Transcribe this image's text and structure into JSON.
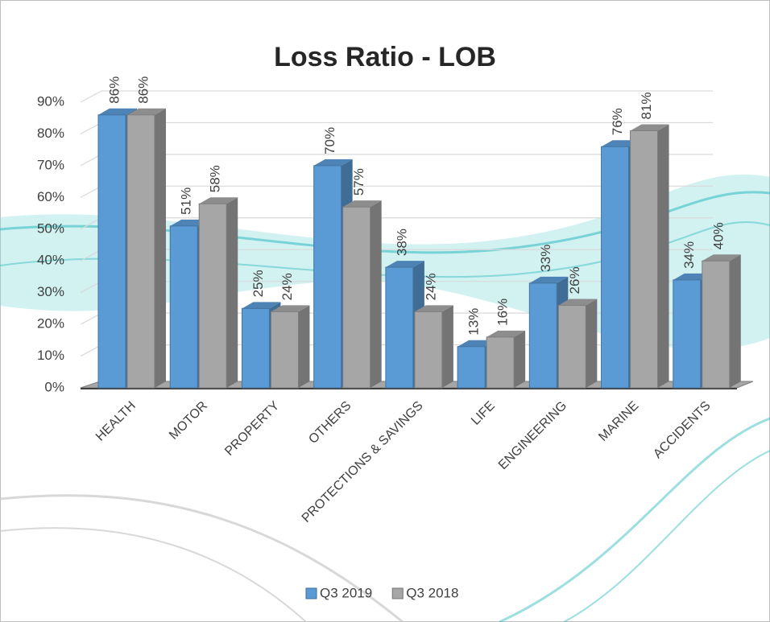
{
  "chart_data": {
    "type": "bar",
    "title": "Loss Ratio - LOB",
    "categories": [
      "HEALTH",
      "MOTOR",
      "PROPERTY",
      "OTHERS",
      "PROTECTIONS & SAVINGS",
      "LIFE",
      "ENGINEERING",
      "MARINE",
      "ACCIDENTS"
    ],
    "series": [
      {
        "name": "Q3 2019",
        "color": "#5b9bd5",
        "values": [
          86,
          51,
          25,
          70,
          38,
          13,
          33,
          76,
          34
        ],
        "value_labels": [
          "86%",
          "51%",
          "25%",
          "70%",
          "38%",
          "13%",
          "33%",
          "76%",
          "34%"
        ]
      },
      {
        "name": "Q3 2018",
        "color": "#a6a6a6",
        "values": [
          86,
          58,
          24,
          57,
          24,
          16,
          26,
          81,
          40
        ],
        "value_labels": [
          "86%",
          "58%",
          "24%",
          "57%",
          "24%",
          "16%",
          "26%",
          "81%",
          "40%"
        ]
      }
    ],
    "ylim": [
      0,
      90
    ],
    "yticks": [
      {
        "value": 0,
        "label": "0%"
      },
      {
        "value": 10,
        "label": "10%"
      },
      {
        "value": 20,
        "label": "20%"
      },
      {
        "value": 30,
        "label": "30%"
      },
      {
        "value": 40,
        "label": "40%"
      },
      {
        "value": 50,
        "label": "50%"
      },
      {
        "value": 60,
        "label": "60%"
      },
      {
        "value": 70,
        "label": "70%"
      },
      {
        "value": 80,
        "label": "80%"
      },
      {
        "value": 90,
        "label": "90%"
      }
    ],
    "grid": true,
    "legend": "bottom"
  }
}
